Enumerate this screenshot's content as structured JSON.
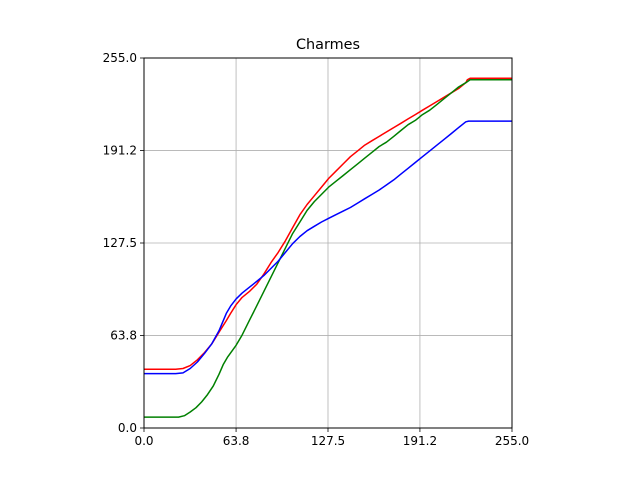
{
  "chart_data": {
    "type": "line",
    "title": "Charmes",
    "xlabel": "",
    "ylabel": "",
    "xlim": [
      0,
      255
    ],
    "ylim": [
      0,
      255
    ],
    "xticks": [
      0,
      63.8,
      127.5,
      191.2,
      255
    ],
    "yticks": [
      0,
      63.8,
      127.5,
      191.2,
      255
    ],
    "xtick_labels": [
      "0.0",
      "63.8",
      "127.5",
      "191.2",
      "255.0"
    ],
    "ytick_labels": [
      "0.0",
      "63.8",
      "127.5",
      "191.2",
      "255.0"
    ],
    "grid": true,
    "series": [
      {
        "color": "#ff0000",
        "points": [
          [
            0,
            40.5
          ],
          [
            22,
            40.5
          ],
          [
            27,
            41
          ],
          [
            32,
            43
          ],
          [
            37,
            47
          ],
          [
            42,
            52
          ],
          [
            47,
            58
          ],
          [
            52,
            66
          ],
          [
            57,
            74
          ],
          [
            60,
            79
          ],
          [
            63.8,
            85
          ],
          [
            68,
            90
          ],
          [
            73,
            94
          ],
          [
            78,
            99
          ],
          [
            83,
            106
          ],
          [
            88,
            114
          ],
          [
            93,
            121
          ],
          [
            98,
            129
          ],
          [
            103,
            138
          ],
          [
            108,
            147
          ],
          [
            113,
            154
          ],
          [
            118,
            160
          ],
          [
            123,
            166
          ],
          [
            128,
            172
          ],
          [
            133,
            177
          ],
          [
            138,
            182
          ],
          [
            143,
            187
          ],
          [
            148,
            191
          ],
          [
            153,
            195
          ],
          [
            158,
            198
          ],
          [
            163,
            201
          ],
          [
            168,
            204
          ],
          [
            173,
            207
          ],
          [
            178,
            210
          ],
          [
            183,
            213
          ],
          [
            188,
            216
          ],
          [
            193,
            219
          ],
          [
            198,
            222
          ],
          [
            203,
            225
          ],
          [
            208,
            228
          ],
          [
            213,
            231
          ],
          [
            218,
            234
          ],
          [
            223,
            238
          ],
          [
            224,
            240
          ],
          [
            226,
            241
          ],
          [
            255,
            241
          ]
        ]
      },
      {
        "color": "#008000",
        "points": [
          [
            0,
            7.5
          ],
          [
            24,
            7.5
          ],
          [
            28,
            8.5
          ],
          [
            32,
            11
          ],
          [
            36,
            14
          ],
          [
            40,
            18
          ],
          [
            44,
            23
          ],
          [
            48,
            29
          ],
          [
            52,
            37
          ],
          [
            55,
            44
          ],
          [
            58,
            49
          ],
          [
            63.8,
            57
          ],
          [
            68,
            64
          ],
          [
            73,
            74
          ],
          [
            78,
            84
          ],
          [
            83,
            94
          ],
          [
            88,
            104
          ],
          [
            93,
            114
          ],
          [
            98,
            124
          ],
          [
            103,
            134
          ],
          [
            108,
            142
          ],
          [
            113,
            150
          ],
          [
            118,
            156
          ],
          [
            123,
            161
          ],
          [
            128,
            166
          ],
          [
            133,
            170
          ],
          [
            138,
            174
          ],
          [
            143,
            178
          ],
          [
            148,
            182
          ],
          [
            153,
            186
          ],
          [
            158,
            190
          ],
          [
            163,
            194
          ],
          [
            168,
            197
          ],
          [
            173,
            201
          ],
          [
            178,
            205
          ],
          [
            183,
            209
          ],
          [
            188,
            212
          ],
          [
            193,
            216
          ],
          [
            198,
            219
          ],
          [
            203,
            223
          ],
          [
            208,
            227
          ],
          [
            213,
            231
          ],
          [
            218,
            235
          ],
          [
            223,
            238
          ],
          [
            226,
            240
          ],
          [
            255,
            240
          ]
        ]
      },
      {
        "color": "#0000ff",
        "points": [
          [
            0,
            37.5
          ],
          [
            22,
            37.5
          ],
          [
            27,
            38
          ],
          [
            32,
            41
          ],
          [
            37,
            45.5
          ],
          [
            42,
            51.5
          ],
          [
            47,
            58
          ],
          [
            52,
            67
          ],
          [
            57,
            79
          ],
          [
            60,
            84
          ],
          [
            63.8,
            89
          ],
          [
            68,
            93
          ],
          [
            73,
            97
          ],
          [
            78,
            101
          ],
          [
            83,
            105
          ],
          [
            88,
            110
          ],
          [
            93,
            115
          ],
          [
            98,
            121
          ],
          [
            103,
            127
          ],
          [
            108,
            132
          ],
          [
            113,
            136
          ],
          [
            118,
            139
          ],
          [
            123,
            142
          ],
          [
            128,
            144.5
          ],
          [
            133,
            147
          ],
          [
            138,
            149.5
          ],
          [
            143,
            152
          ],
          [
            148,
            155
          ],
          [
            153,
            158
          ],
          [
            158,
            161
          ],
          [
            163,
            164
          ],
          [
            168,
            167.5
          ],
          [
            173,
            171
          ],
          [
            178,
            175
          ],
          [
            183,
            179
          ],
          [
            188,
            183
          ],
          [
            193,
            187
          ],
          [
            198,
            191
          ],
          [
            203,
            195
          ],
          [
            208,
            199
          ],
          [
            213,
            203
          ],
          [
            218,
            207
          ],
          [
            223,
            211
          ],
          [
            225,
            211.5
          ],
          [
            255,
            211.5
          ]
        ]
      }
    ]
  }
}
